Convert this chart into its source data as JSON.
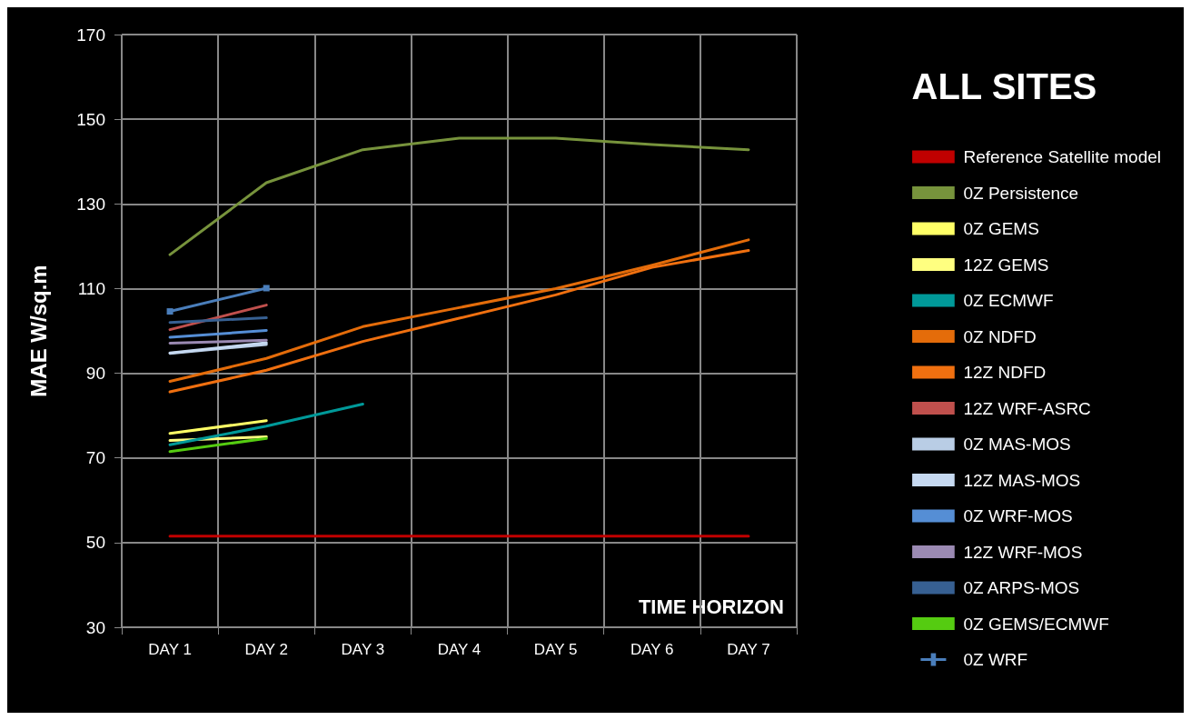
{
  "chart_data": {
    "type": "line",
    "title": "ALL SITES",
    "xlabel": "TIME HORIZON",
    "ylabel": "MAE W/sq.m",
    "categories": [
      "DAY 1",
      "DAY 2",
      "DAY 3",
      "DAY 4",
      "DAY 5",
      "DAY 6",
      "DAY 7"
    ],
    "ylim": [
      30,
      170
    ],
    "yticks": [
      30,
      50,
      70,
      90,
      110,
      130,
      150,
      170
    ],
    "grid": true,
    "legend": "right",
    "marker": "none",
    "line_style": "solid",
    "series": [
      {
        "name": "Reference Satellite model",
        "color": "#c00000",
        "values": [
          51.5,
          51.5,
          51.5,
          51.5,
          51.5,
          51.5,
          51.5
        ]
      },
      {
        "name": "0Z Persistence",
        "color": "#77933c",
        "values": [
          118,
          135,
          142.8,
          145.5,
          145.5,
          144,
          142.8
        ]
      },
      {
        "name": "0Z GEMS",
        "color": "#ffff66",
        "values": [
          75.8,
          78.8,
          null,
          null,
          null,
          null,
          null
        ]
      },
      {
        "name": "12Z GEMS",
        "color": "#ffff80",
        "values": [
          74.1,
          75,
          null,
          null,
          null,
          null,
          null
        ]
      },
      {
        "name": "0Z ECMWF",
        "color": "#009999",
        "values": [
          73.1,
          77.5,
          82.7,
          null,
          null,
          null,
          null
        ]
      },
      {
        "name": "0Z NDFD",
        "color": "#e46c0a",
        "values": [
          88.1,
          93.5,
          101,
          105.5,
          110,
          115.5,
          121.5
        ]
      },
      {
        "name": "12Z NDFD",
        "color": "#f07010",
        "values": [
          85.6,
          90.7,
          97.5,
          103,
          108.5,
          115,
          119
        ]
      },
      {
        "name": "12Z WRF-ASRC",
        "color": "#c0504d",
        "values": [
          100.3,
          106.1,
          null,
          null,
          null,
          null,
          null
        ]
      },
      {
        "name": "0Z MAS-MOS",
        "color": "#b9cde5",
        "values": [
          94.7,
          96.8,
          null,
          null,
          null,
          null,
          null
        ]
      },
      {
        "name": "12Z MAS-MOS",
        "color": "#c6d9f1",
        "values": [
          94.8,
          97.2,
          null,
          null,
          null,
          null,
          null
        ]
      },
      {
        "name": "0Z WRF-MOS",
        "color": "#558ed5",
        "values": [
          98.5,
          100.1,
          null,
          null,
          null,
          null,
          null
        ]
      },
      {
        "name": "12Z WRF-MOS",
        "color": "#9b8ab3",
        "values": [
          97.1,
          97.8,
          null,
          null,
          null,
          null,
          null
        ]
      },
      {
        "name": "0Z ARPS-MOS",
        "color": "#376092",
        "values": [
          102,
          103.1,
          null,
          null,
          null,
          null,
          null
        ]
      },
      {
        "name": "0Z GEMS/ECMWF",
        "color": "#55cc11",
        "values": [
          71.5,
          74.6,
          null,
          null,
          null,
          null,
          null
        ]
      },
      {
        "name": "0Z WRF",
        "color": "#4a7ebb",
        "marker": "square",
        "values": [
          104.6,
          110.1,
          null,
          null,
          null,
          null,
          null
        ]
      }
    ]
  }
}
